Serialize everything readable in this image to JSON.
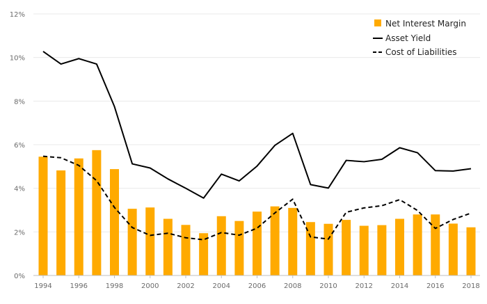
{
  "chart_data": {
    "type": "bar",
    "title": "",
    "xlabel": "",
    "ylabel": "",
    "ylim": [
      0,
      12
    ],
    "yticks": [
      "0%",
      "2%",
      "4%",
      "6%",
      "8%",
      "10%",
      "12%"
    ],
    "xticks": [
      "1994",
      "1996",
      "1998",
      "2000",
      "2002",
      "2004",
      "2006",
      "2008",
      "2010",
      "2012",
      "2014",
      "2016",
      "2018"
    ],
    "categories": [
      "1994",
      "1995",
      "1996",
      "1997",
      "1998",
      "1999",
      "2000",
      "2001",
      "2002",
      "2003",
      "2004",
      "2005",
      "2006",
      "2007",
      "2008",
      "2009",
      "2010",
      "2011",
      "2012",
      "2013",
      "2014",
      "2015",
      "2016",
      "2017",
      "2018"
    ],
    "grid": true,
    "legend_position": "top-right",
    "series": [
      {
        "name": "Net Interest Margin",
        "type": "bar",
        "color": "#FFAA00",
        "values": [
          5.45,
          4.82,
          5.37,
          5.75,
          4.88,
          3.06,
          3.12,
          2.6,
          2.32,
          1.94,
          2.72,
          2.5,
          2.93,
          3.17,
          3.1,
          2.45,
          2.37,
          2.55,
          2.28,
          2.31,
          2.6,
          2.8,
          2.8,
          2.38,
          2.21
        ]
      },
      {
        "name": "Asset Yield",
        "type": "line",
        "style": "solid",
        "color": "#000000",
        "values": [
          10.28,
          9.7,
          9.95,
          9.7,
          7.75,
          5.12,
          4.93,
          4.43,
          4.0,
          3.55,
          4.65,
          4.34,
          5.02,
          5.97,
          6.52,
          4.17,
          4.01,
          5.28,
          5.22,
          5.33,
          5.86,
          5.63,
          4.81,
          4.79,
          4.9
        ]
      },
      {
        "name": "Cost of Liabilities",
        "type": "line",
        "style": "dashed",
        "color": "#000000",
        "values": [
          5.47,
          5.4,
          5.05,
          4.35,
          3.12,
          2.2,
          1.84,
          1.94,
          1.73,
          1.64,
          1.97,
          1.85,
          2.17,
          2.87,
          3.5,
          1.77,
          1.67,
          2.9,
          3.1,
          3.2,
          3.48,
          2.98,
          2.16,
          2.57,
          2.86
        ]
      }
    ]
  }
}
